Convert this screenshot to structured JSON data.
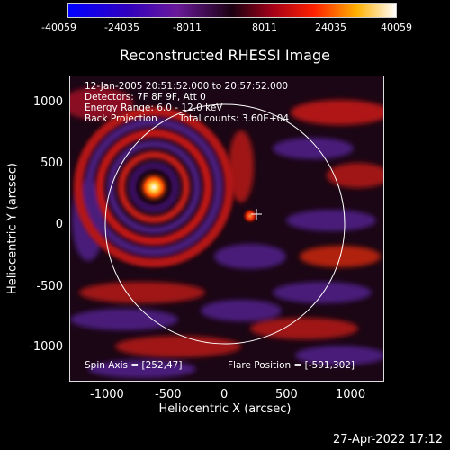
{
  "colorbar": {
    "ticks": [
      "-40059",
      "-24035",
      "-8011",
      "8011",
      "24035",
      "40059"
    ]
  },
  "title": "Reconstructed RHESSI Image",
  "annotations": {
    "time_range": "12-Jan-2005 20:51:52.000 to 20:57:52.000",
    "detectors": "Detectors: 7F 8F 9F, Att 0",
    "energy": "Energy Range: 6.0 - 12.0 keV",
    "method": "Back Projection",
    "counts": "Total counts: 3.60E+04",
    "spin_axis": "Spin Axis = [252,47]",
    "flare_position": "Flare Position = [-591,302]"
  },
  "axes": {
    "xlabel": "Heliocentric X (arcsec)",
    "ylabel": "Heliocentric Y (arcsec)",
    "xticks": [
      "-1000",
      "-500",
      "0",
      "500",
      "1000"
    ],
    "yticks": [
      "1000",
      "500",
      "0",
      "-500",
      "-1000"
    ]
  },
  "timestamp": "27-Apr-2022 17:12",
  "colors": {
    "background": "#000000",
    "limb_circle": "#ffffff"
  }
}
